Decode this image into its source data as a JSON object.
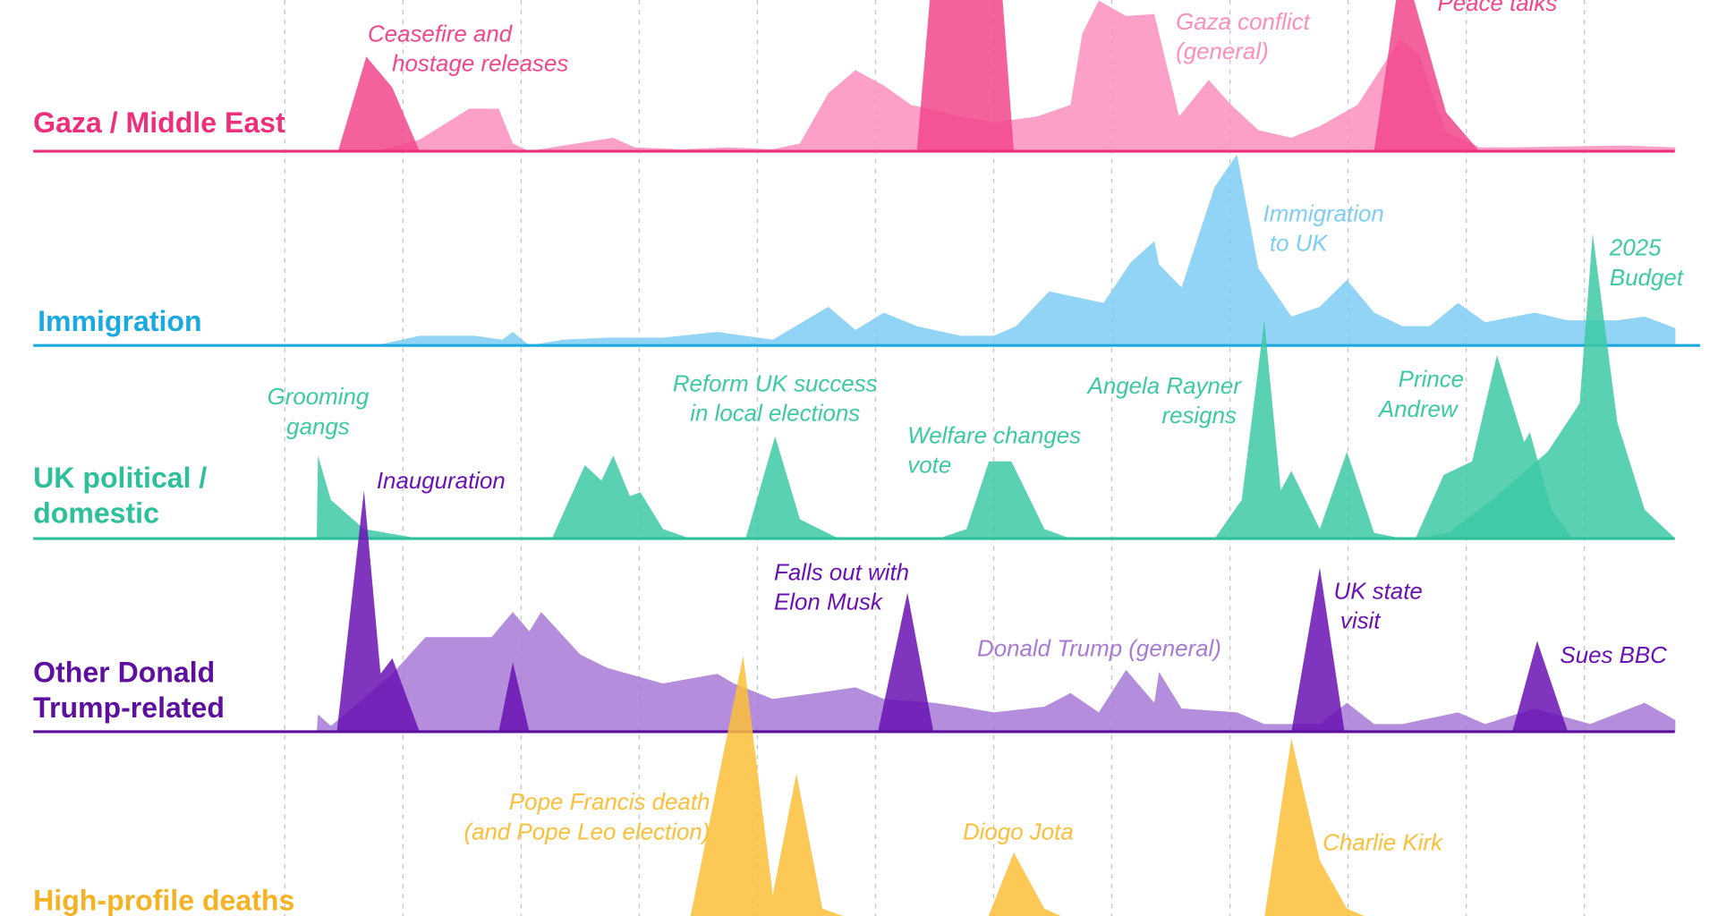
{
  "chart_data": {
    "type": "ridgeline",
    "xlim": [
      -2.41,
      12.13
    ],
    "xticks": [
      0,
      1,
      2,
      3,
      4,
      5,
      6,
      7,
      8,
      9,
      10,
      11
    ],
    "grid": true,
    "panels": [
      {
        "title": "Gaza / Middle East",
        "color": "#ee2f7b",
        "ylim": [
          0,
          100
        ],
        "series": [
          {
            "name": "Gaza conflict\n(general)",
            "color": "#fb8fbd",
            "x": [
              0.77,
              1.14,
              1.56,
              1.81,
              1.93,
              2.07,
              2.36,
              2.78,
              2.96,
              3.38,
              3.76,
              4.13,
              4.36,
              4.6,
              4.83,
              5.07,
              5.3,
              5.72,
              6.0,
              6.37,
              6.65,
              6.75,
              6.89,
              7.12,
              7.36,
              7.57,
              7.82,
              8.01,
              8.24,
              8.52,
              8.76,
              9.08,
              9.44,
              9.6,
              9.83,
              10.11,
              10.39,
              11.33,
              11.77
            ],
            "values": [
              0,
              6,
              22,
              22,
              4,
              0,
              3,
              7,
              2,
              1,
              2,
              1,
              4,
              30,
              42,
              34,
              24,
              18,
              15,
              18,
              24,
              61,
              78,
              70,
              71,
              18,
              37,
              24,
              11,
              7,
              13,
              24,
              58,
              50,
              10,
              2,
              2,
              3,
              2
            ]
          },
          {
            "name": "Ceasefire and\nhostage releases",
            "color": "#f2478d",
            "x": [
              0.45,
              0.69,
              0.91,
              1.14,
              5.35,
              5.49,
              6.05,
              6.17
            ],
            "values": [
              0,
              49,
              33,
              0,
              0,
              100,
              100,
              0
            ]
          },
          {
            "name": "Peace talks",
            "color": "#f2478d",
            "x": [
              9.22,
              9.41,
              9.55,
              9.83,
              10.07,
              10.11
            ],
            "values": [
              0,
              80,
              80,
              20,
              3,
              0
            ]
          }
        ]
      },
      {
        "title": "Immigration",
        "color": "#1ba9e1",
        "ylim": [
          0,
          100
        ],
        "series": [
          {
            "name": "Immigration\nto UK",
            "color": "#7fcdf3",
            "x": [
              0.77,
              1.14,
              1.61,
              1.84,
              1.93,
              2.07,
              2.36,
              2.73,
              3.2,
              3.66,
              4.13,
              4.6,
              4.83,
              5.07,
              5.35,
              5.72,
              6.0,
              6.19,
              6.47,
              6.93,
              7.16,
              7.36,
              7.4,
              7.59,
              7.87,
              8.06,
              8.24,
              8.52,
              8.76,
              8.99,
              9.22,
              9.46,
              9.69,
              9.93,
              10.16,
              10.58,
              10.86,
              11.28,
              11.51,
              11.77
            ],
            "values": [
              0,
              5,
              5,
              3,
              7,
              0,
              3,
              4,
              4,
              7,
              3,
              20,
              8,
              17,
              10,
              5,
              5,
              10,
              28,
              22,
              43,
              54,
              42,
              30,
              82,
              99,
              40,
              15,
              20,
              34,
              17,
              10,
              10,
              22,
              12,
              17,
              13,
              13,
              15,
              9
            ]
          }
        ]
      },
      {
        "title": "UK political /\ndomestic",
        "color": "#2dc09a",
        "ylim": [
          0,
          100
        ],
        "series": [
          {
            "name": "Grooming\ngangs",
            "color": "#3cc9a4",
            "x": [
              0.27,
              0.28,
              0.39,
              0.67,
              1.14
            ],
            "values": [
              0,
              43,
              20,
              5,
              0
            ]
          },
          {
            "name": "Reform UK success\nin local elections",
            "color": "#3cc9a4",
            "x": [
              2.26,
              2.54,
              2.68,
              2.78,
              2.92,
              3.01,
              3.2,
              3.43,
              3.9,
              4.15,
              4.36,
              4.69
            ],
            "values": [
              0,
              38,
              30,
              43,
              22,
              24,
              5,
              0,
              0,
              53,
              10,
              0
            ]
          },
          {
            "name": "Welfare changes\nvote",
            "color": "#3cc9a4",
            "x": [
              5.53,
              5.77,
              5.96,
              6.15,
              6.43,
              6.65
            ],
            "values": [
              0,
              5,
              40,
              40,
              5,
              0
            ]
          },
          {
            "name": "Angela Rayner\nresigns",
            "color": "#3cc9a4",
            "x": [
              7.87,
              8.1,
              8.29,
              8.43,
              8.52,
              8.76,
              8.99,
              9.22,
              9.46
            ],
            "values": [
              0,
              20,
              113,
              25,
              35,
              5,
              45,
              3,
              0
            ]
          },
          {
            "name": "Prince\nAndrew",
            "color": "#3cc9a4",
            "x": [
              9.57,
              9.81,
              10.05,
              10.26,
              10.49,
              10.54,
              10.72,
              10.9
            ],
            "values": [
              0,
              33,
              40,
              95,
              50,
              55,
              15,
              0
            ]
          },
          {
            "name": "2025\nBudget",
            "color": "#3cc9a4",
            "x": [
              9.57,
              9.85,
              10.22,
              10.69,
              10.96,
              11.07,
              11.28,
              11.51,
              11.77
            ],
            "values": [
              0,
              3,
              20,
              45,
              70,
              158,
              60,
              15,
              0
            ]
          }
        ]
      },
      {
        "title": "Other Donald\nTrump-related",
        "color": "#5d109e",
        "ylim": [
          0,
          100
        ],
        "series": [
          {
            "name": "Donald Trump (general)",
            "color": "#a77ad6",
            "x": [
              0.27,
              0.28,
              0.39,
              0.91,
              1.19,
              1.75,
              1.93,
              2.07,
              2.17,
              2.5,
              2.73,
              3.2,
              3.66,
              3.8,
              4.13,
              4.5,
              4.83,
              5.07,
              5.49,
              5.72,
              6.0,
              6.43,
              6.65,
              6.89,
              7.12,
              7.36,
              7.4,
              7.59,
              8.06,
              8.29,
              8.52,
              8.76,
              8.99,
              9.22,
              9.46,
              9.93,
              10.16,
              10.58,
              11.05,
              11.51,
              11.77
            ],
            "values": [
              0,
              9,
              3,
              30,
              49,
              49,
              62,
              52,
              62,
              40,
              33,
              25,
              30,
              25,
              17,
              20,
              23,
              17,
              15,
              13,
              10,
              13,
              20,
              10,
              32,
              15,
              31,
              12,
              10,
              4,
              4,
              4,
              15,
              4,
              4,
              10,
              4,
              12,
              4,
              15,
              6
            ]
          },
          {
            "name": "Inauguration",
            "color": "#6a12b4",
            "x": [
              0.44,
              0.67,
              0.81,
              0.91,
              1.14,
              1.81,
              1.93,
              2.07
            ],
            "values": [
              0,
              125,
              30,
              38,
              0,
              0,
              36,
              0
            ]
          },
          {
            "name": "Falls out with\nElon Musk",
            "color": "#6a12b4",
            "x": [
              5.02,
              5.27,
              5.49
            ],
            "values": [
              0,
              72,
              0
            ]
          },
          {
            "name": "UK state\nvisit",
            "color": "#6a12b4",
            "x": [
              8.52,
              8.76,
              8.97
            ],
            "values": [
              0,
              85,
              0
            ]
          },
          {
            "name": "Sues BBC",
            "color": "#6a12b4",
            "x": [
              10.39,
              10.6,
              10.86
            ],
            "values": [
              0,
              47,
              0
            ]
          }
        ]
      },
      {
        "title": "High-profile deaths",
        "color": "#f5b324",
        "ylim": [
          0,
          100
        ],
        "series": [
          {
            "name": "Pope Francis death\n(and Pope Leo election)",
            "color": "#fbbf3a",
            "x": [
              3.43,
              3.88,
              4.13,
              4.33,
              4.55,
              4.78
            ],
            "values": [
              0,
              136,
              12,
              75,
              5,
              0
            ]
          },
          {
            "name": "Diogo Jota",
            "color": "#fbbf3a",
            "x": [
              5.95,
              6.17,
              6.43,
              6.61
            ],
            "values": [
              0,
              34,
              5,
              0
            ]
          },
          {
            "name": "Charlie Kirk",
            "color": "#fbbf3a",
            "x": [
              8.29,
              8.52,
              8.76,
              8.99,
              9.18
            ],
            "values": [
              0,
              93,
              30,
              5,
              0
            ]
          }
        ]
      }
    ]
  }
}
